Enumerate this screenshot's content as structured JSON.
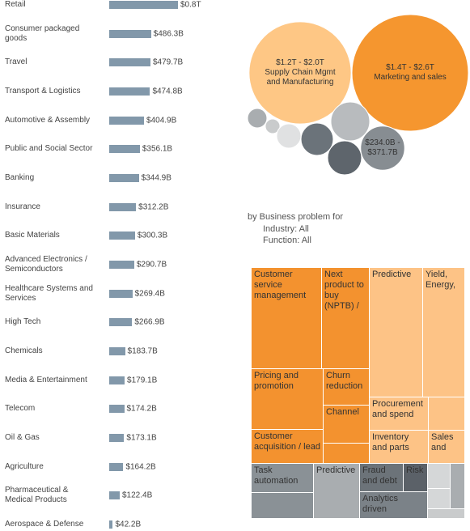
{
  "chart_data": [
    {
      "type": "bar",
      "orientation": "horizontal",
      "color": "#8298aa",
      "categories": [
        "Retail",
        "Consumer packaged goods",
        "Travel",
        "Transport & Logistics",
        "Automotive & Assembly",
        "Public and Social Sector",
        "Banking",
        "Insurance",
        "Basic Materials",
        "Advanced Electronics / Semiconductors",
        "Healthcare Systems and Services",
        "High Tech",
        "Chemicals",
        "Media & Entertainment",
        "Telecom",
        "Oil & Gas",
        "Agriculture",
        "Pharmaceutical & Medical Products",
        "Aerospace & Defense"
      ],
      "values": [
        800,
        486.3,
        479.7,
        474.8,
        404.9,
        356.1,
        344.9,
        312.2,
        300.3,
        290.7,
        269.4,
        266.9,
        183.7,
        179.1,
        174.2,
        173.1,
        164.2,
        122.4,
        42.2
      ],
      "value_labels": [
        "$0.8T",
        "$486.3B",
        "$479.7B",
        "$474.8B",
        "$404.9B",
        "$356.1B",
        "$344.9B",
        "$312.2B",
        "$300.3B",
        "$290.7B",
        "$269.4B",
        "$266.9B",
        "$183.7B",
        "$179.1B",
        "$174.2B",
        "$173.1B",
        "$164.2B",
        "$122.4B",
        "$42.2B"
      ]
    },
    {
      "type": "bubble",
      "labels": [
        "Supply Chain Mgmt and Manufacturing",
        "Marketing and sales",
        null,
        null,
        null,
        null,
        null,
        null,
        null
      ],
      "values": [
        2000,
        2600,
        72,
        41,
        113,
        200,
        289,
        221,
        371.7
      ],
      "value_labels": [
        "$1.2T - $2.0T",
        "$1.4T - $2.6T",
        null,
        null,
        null,
        null,
        null,
        null,
        "$234.0B - $371.7B"
      ],
      "colors": [
        "#fec785",
        "#f5962f",
        "#a9adb0",
        "#c9cbcc",
        "#e0e1e2",
        "#6b737a",
        "#b8bbbe",
        "#5e656c",
        "#878d92"
      ]
    }
  ],
  "filter": {
    "title": "by Business problem for",
    "industry": "Industry: All",
    "function": "Function: All"
  },
  "treemap": {
    "cells": [
      "Customer service management",
      "Next product to buy (NPTB) /",
      "Pricing and promotion",
      "Churn reduction",
      "Channel",
      "Customer acquisition / lead",
      "Predictive",
      "Yield, Energy,",
      "Procurement and spend",
      "Inventory and parts",
      "Sales and",
      "Task automation",
      "Predictive",
      "Fraud and debt",
      "Risk",
      "Analytics driven"
    ]
  }
}
